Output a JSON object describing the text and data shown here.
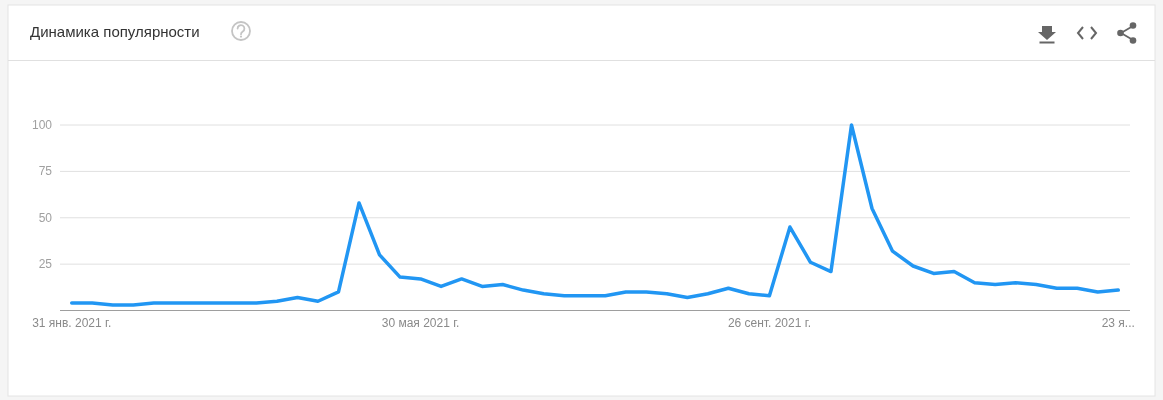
{
  "chart_data": {
    "type": "line",
    "title": "Динамика популярности",
    "x": [
      "2021-01-31",
      "2021-02-07",
      "2021-02-14",
      "2021-02-21",
      "2021-02-28",
      "2021-03-07",
      "2021-03-14",
      "2021-03-21",
      "2021-03-28",
      "2021-04-04",
      "2021-04-11",
      "2021-04-18",
      "2021-04-25",
      "2021-05-02",
      "2021-05-09",
      "2021-05-16",
      "2021-05-23",
      "2021-05-30",
      "2021-06-06",
      "2021-06-13",
      "2021-06-20",
      "2021-06-27",
      "2021-07-04",
      "2021-07-11",
      "2021-07-18",
      "2021-07-25",
      "2021-08-01",
      "2021-08-08",
      "2021-08-15",
      "2021-08-22",
      "2021-08-29",
      "2021-09-05",
      "2021-09-12",
      "2021-09-19",
      "2021-09-26",
      "2021-10-03",
      "2021-10-10",
      "2021-10-17",
      "2021-10-24",
      "2021-10-31",
      "2021-11-07",
      "2021-11-14",
      "2021-11-21",
      "2021-11-28",
      "2021-12-05",
      "2021-12-12",
      "2021-12-19",
      "2021-12-26",
      "2022-01-02",
      "2022-01-09",
      "2022-01-16",
      "2022-01-23"
    ],
    "values": [
      4,
      4,
      3,
      3,
      4,
      4,
      4,
      4,
      4,
      4,
      5,
      7,
      5,
      10,
      58,
      30,
      18,
      17,
      13,
      17,
      13,
      14,
      11,
      9,
      8,
      8,
      8,
      10,
      10,
      9,
      7,
      9,
      12,
      9,
      8,
      45,
      26,
      21,
      100,
      55,
      32,
      24,
      20,
      21,
      15,
      14,
      15,
      14,
      12,
      12,
      10,
      11
    ],
    "color": "#2196f3",
    "xlim": [
      "2021-01-27",
      "2022-01-27"
    ],
    "xticks": [
      {
        "value": "2021-01-31",
        "label": "31 янв. 2021 г."
      },
      {
        "value": "2021-05-30",
        "label": "30 мая 2021 г."
      },
      {
        "value": "2021-09-26",
        "label": "26 сент. 2021 г."
      },
      {
        "value": "2022-01-23",
        "label": "23 я..."
      }
    ],
    "ylim": [
      0,
      100
    ],
    "yticks": [
      25,
      50,
      75,
      100
    ],
    "grid": "y"
  }
}
